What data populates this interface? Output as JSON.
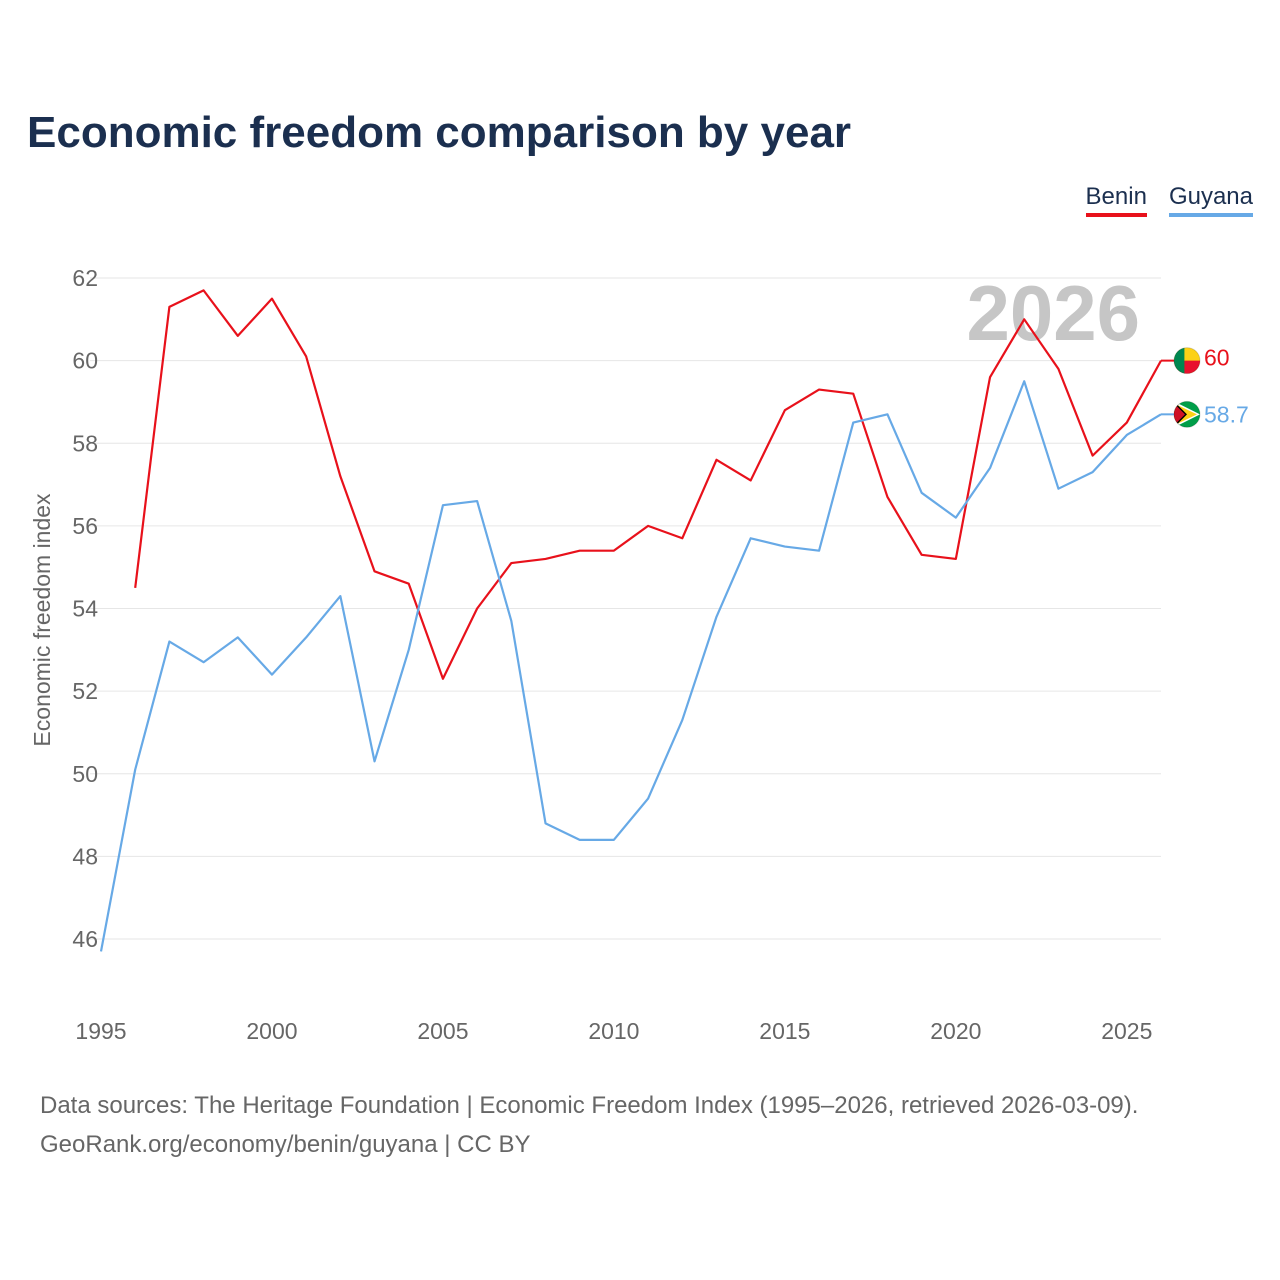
{
  "title": "Economic freedom comparison by year",
  "legend": {
    "benin": "Benin",
    "guyana": "Guyana"
  },
  "source": {
    "line1": "Data sources: The Heritage Foundation | Economic Freedom Index (1995–2026, retrieved 2026-03-09).",
    "line2": "GeoRank.org/economy/benin/guyana | CC BY"
  },
  "colors": {
    "benin": "#e8111b",
    "guyana": "#67a9e6",
    "grid": "#e6e6e6",
    "text": "#666666",
    "title": "#1b2f4f"
  },
  "chart_data": {
    "type": "line",
    "title": "Economic freedom comparison by year",
    "xlabel": "",
    "ylabel": "Economic freedom index",
    "xlim": [
      1995,
      2026
    ],
    "ylim": [
      45,
      63
    ],
    "xticks": [
      1995,
      2000,
      2005,
      2010,
      2015,
      2020,
      2025
    ],
    "yticks": [
      46,
      48,
      50,
      52,
      54,
      56,
      58,
      60,
      62
    ],
    "year_label": "2026",
    "series": [
      {
        "name": "Benin",
        "color": "#e8111b",
        "end_label": "60",
        "flag_icon": "benin-flag-icon",
        "x": [
          1996,
          1997,
          1998,
          1999,
          2000,
          2001,
          2002,
          2003,
          2004,
          2005,
          2006,
          2007,
          2008,
          2009,
          2010,
          2011,
          2012,
          2013,
          2014,
          2015,
          2016,
          2017,
          2018,
          2019,
          2020,
          2021,
          2022,
          2023,
          2024,
          2025,
          2026
        ],
        "values": [
          54.5,
          61.3,
          61.7,
          60.6,
          61.5,
          60.1,
          57.2,
          54.9,
          54.6,
          52.3,
          54.0,
          55.1,
          55.2,
          55.4,
          55.4,
          56.0,
          55.7,
          57.6,
          57.1,
          58.8,
          59.3,
          59.2,
          56.7,
          55.3,
          55.2,
          59.6,
          61.0,
          59.8,
          57.7,
          58.5,
          60.0
        ]
      },
      {
        "name": "Guyana",
        "color": "#67a9e6",
        "end_label": "58.7",
        "flag_icon": "guyana-flag-icon",
        "x": [
          1995,
          1996,
          1997,
          1998,
          1999,
          2000,
          2001,
          2002,
          2003,
          2004,
          2005,
          2006,
          2007,
          2008,
          2009,
          2010,
          2011,
          2012,
          2013,
          2014,
          2015,
          2016,
          2017,
          2018,
          2019,
          2020,
          2021,
          2022,
          2023,
          2024,
          2025,
          2026
        ],
        "values": [
          45.7,
          50.1,
          53.2,
          52.7,
          53.3,
          52.4,
          53.3,
          54.3,
          50.3,
          53.0,
          56.5,
          56.6,
          53.7,
          48.8,
          48.4,
          48.4,
          49.4,
          51.3,
          53.8,
          55.7,
          55.5,
          55.4,
          58.5,
          58.7,
          56.8,
          56.2,
          57.4,
          59.5,
          56.9,
          57.3,
          58.2,
          58.7
        ]
      }
    ]
  }
}
